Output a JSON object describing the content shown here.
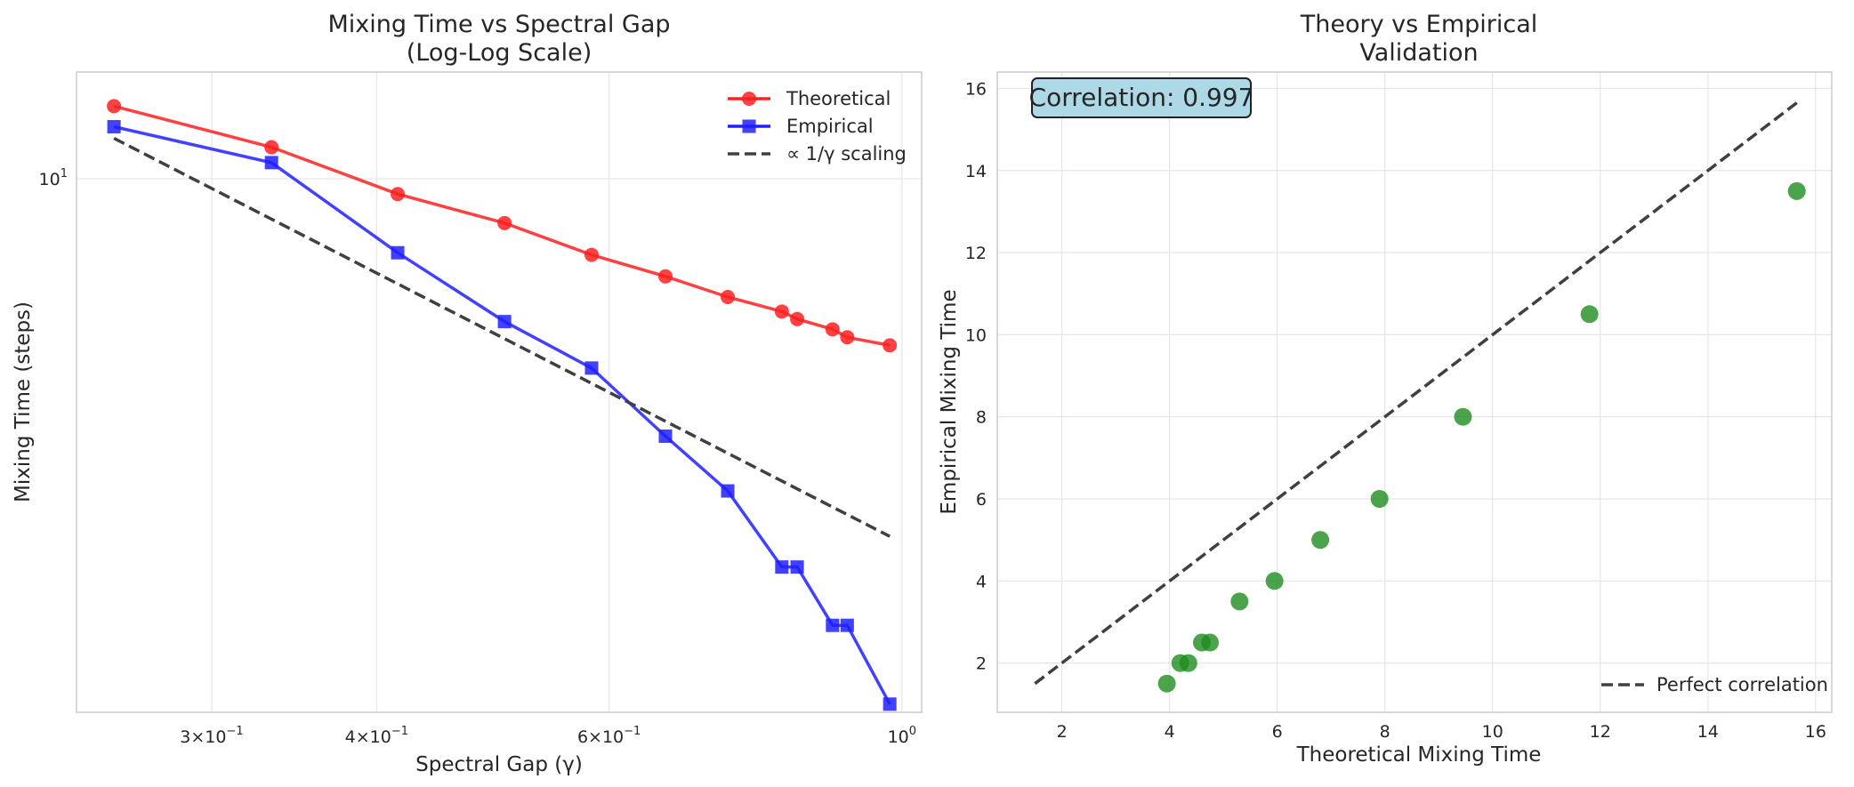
{
  "chart_data": [
    {
      "type": "line",
      "title": "Mixing Time vs Spectral Gap",
      "subtitle": "(Log-Log Scale)",
      "xlabel": "Spectral Gap (γ)",
      "ylabel": "Mixing Time (steps)",
      "xscale": "log",
      "yscale": "log",
      "xlim": [
        0.237,
        1.035
      ],
      "ylim": [
        2.0,
        13.8
      ],
      "xticks": [
        {
          "value": 0.3,
          "base": "3×10",
          "exp": "−1"
        },
        {
          "value": 0.4,
          "base": "4×10",
          "exp": "−1"
        },
        {
          "value": 0.6,
          "base": "6×10",
          "exp": "−1"
        },
        {
          "value": 1.0,
          "base": "10",
          "exp": "0"
        }
      ],
      "yticks": [
        {
          "value": 10,
          "base": "10",
          "exp": "1"
        }
      ],
      "x": [
        0.253,
        0.333,
        0.415,
        0.5,
        0.582,
        0.662,
        0.738,
        0.811,
        0.833,
        0.886,
        0.909,
        0.979
      ],
      "series": [
        {
          "name": "Theoretical",
          "color": "#ff2020",
          "marker": "circle",
          "values": [
            12.45,
            11.0,
            9.55,
            8.75,
            7.95,
            7.45,
            7.0,
            6.7,
            6.55,
            6.35,
            6.2,
            6.05
          ]
        },
        {
          "name": "Empirical",
          "color": "#2020ff",
          "marker": "square",
          "values": [
            11.7,
            10.5,
            8.0,
            6.5,
            5.65,
            4.6,
            3.9,
            3.1,
            3.1,
            2.6,
            2.6,
            2.05
          ]
        },
        {
          "name": "∝ 1/γ scaling",
          "color": "#404040",
          "marker": "none",
          "dashed": true,
          "x": [
            0.253,
            0.979
          ],
          "values": [
            11.3,
            3.4
          ]
        }
      ],
      "legend": "top-right",
      "grid": true
    },
    {
      "type": "scatter",
      "title": "Theory vs Empirical",
      "subtitle": "Validation",
      "xlabel": "Theoretical Mixing Time",
      "ylabel": "Empirical Mixing Time",
      "xlim": [
        0.8,
        16.3
      ],
      "ylim": [
        0.8,
        16.4
      ],
      "xticks": [
        2,
        4,
        6,
        8,
        10,
        12,
        14,
        16
      ],
      "yticks": [
        2,
        4,
        6,
        8,
        10,
        12,
        14,
        16
      ],
      "points": [
        {
          "x": 15.65,
          "y": 13.5
        },
        {
          "x": 11.8,
          "y": 10.5
        },
        {
          "x": 9.45,
          "y": 8.0
        },
        {
          "x": 7.9,
          "y": 6.0
        },
        {
          "x": 6.8,
          "y": 5.0
        },
        {
          "x": 5.95,
          "y": 4.0
        },
        {
          "x": 5.3,
          "y": 3.5
        },
        {
          "x": 4.75,
          "y": 2.5
        },
        {
          "x": 4.6,
          "y": 2.5
        },
        {
          "x": 4.35,
          "y": 2.0
        },
        {
          "x": 4.2,
          "y": 2.0
        },
        {
          "x": 3.95,
          "y": 1.5
        }
      ],
      "point_color": "#1e8c1e",
      "reference_line": {
        "name": "Perfect correlation",
        "x": [
          1.5,
          15.65
        ],
        "y": [
          1.5,
          15.65
        ],
        "color": "#404040",
        "dashed": true
      },
      "annotation": "Correlation: 0.997",
      "annotation_bg": "#add8e6",
      "legend": "bottom-right",
      "grid": true
    }
  ]
}
